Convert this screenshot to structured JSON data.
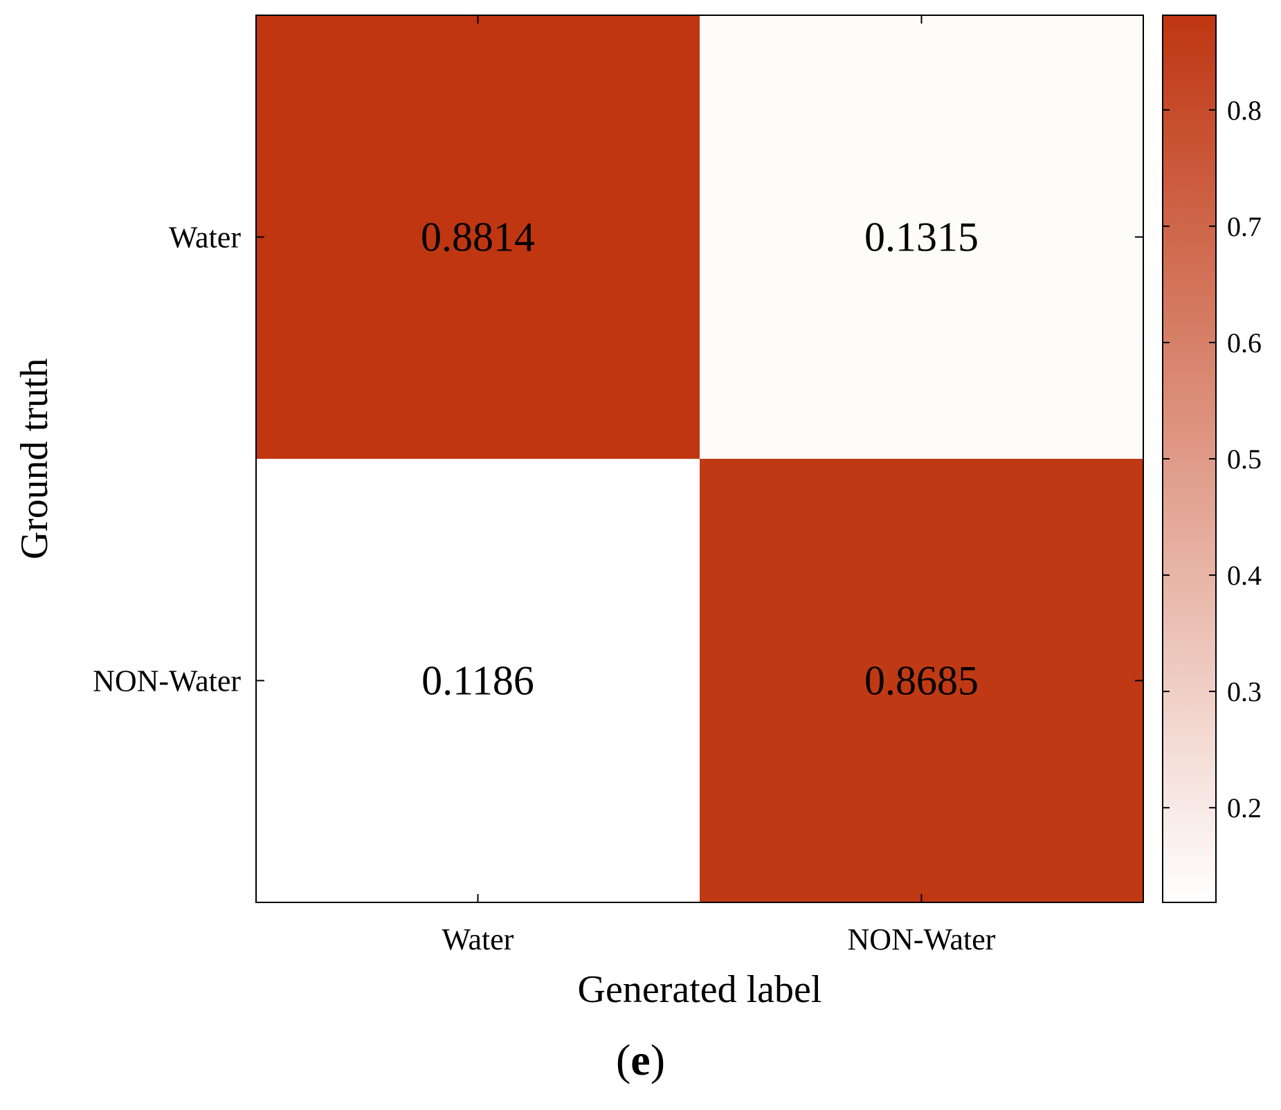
{
  "chart_data": {
    "type": "heatmap",
    "xlabel": "Generated label",
    "ylabel": "Ground truth",
    "x_categories": [
      "Water",
      "NON-Water"
    ],
    "y_categories": [
      "Water",
      "NON-Water"
    ],
    "values": [
      [
        0.8814,
        0.1315
      ],
      [
        0.1186,
        0.8685
      ]
    ],
    "value_labels": [
      [
        "0.8814",
        "0.1315"
      ],
      [
        "0.1186",
        "0.8685"
      ]
    ],
    "colorbar": {
      "range": [
        0.1186,
        0.8814
      ],
      "ticks": [
        0.2,
        0.3,
        0.4,
        0.5,
        0.6,
        0.7,
        0.8
      ],
      "tick_labels": [
        "0.2",
        "0.3",
        "0.4",
        "0.5",
        "0.6",
        "0.7",
        "0.8"
      ],
      "low_color": "#ffffff",
      "high_color": "#bf3611"
    }
  },
  "panel_label": {
    "open": "(",
    "letter": "e",
    "close": ")"
  }
}
